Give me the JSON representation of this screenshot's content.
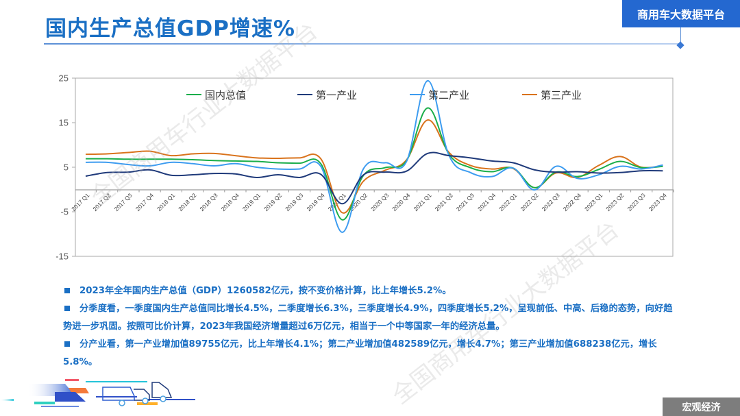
{
  "header": {
    "title": "国内生产总值GDP增速%",
    "brand": "商用车大数据平台"
  },
  "footer": {
    "section_label": "宏观经济"
  },
  "watermarks": [
    "全国商用车行业大数据平台",
    "全国商用车行业大数据平台"
  ],
  "colors": {
    "title_blue": "#1a6fc4",
    "brand_bg": "#2468d0",
    "section_bg": "#7d7d7d",
    "gdp": "#1aae4a",
    "primary": "#1f3a7a",
    "secondary": "#3d9cf0",
    "tertiary": "#d9731c"
  },
  "bullets": [
    {
      "text": "2023年全年国内生产总值（GDP）1260582亿元，按不变价格计算，比上年增长5.2%。"
    },
    {
      "text": "分季度看，一季度国内生产总值同比增长4.5%，二季度增长6.3%，三季度增长4.9%，四季度增长5.2%，呈现前低、中高、后稳的态势，向好趋势进一步巩固。按照可比价计算，2023年我国经济增量超过6万亿元，相当于一个中等国家一年的经济总量。"
    },
    {
      "text": "分产业看，第一产业增加值89755亿元，比上年增长4.1%；第二产业增加值482589亿元，增长4.7%；第三产业增加值688238亿元，增长5.8%。"
    }
  ],
  "chart_data": {
    "type": "line",
    "title": "国内生产总值GDP增速%",
    "xlabel": "",
    "ylabel": "",
    "ylim": [
      -15,
      25
    ],
    "yticks": [
      25,
      15,
      5,
      -5,
      -15
    ],
    "grid": false,
    "legend_position": "top-inside",
    "smooth": true,
    "categories": [
      "2017 Q1",
      "2017 Q2",
      "2017 Q3",
      "2017 Q4",
      "2018 Q1",
      "2018 Q2",
      "2018 Q3",
      "2018 Q4",
      "2019 Q1",
      "2019 Q2",
      "2019 Q3",
      "2019 Q4",
      "2020 Q1",
      "2020 Q2",
      "2020 Q3",
      "2020 Q4",
      "2021 Q1",
      "2021 Q2",
      "2021 Q3",
      "2021 Q4",
      "2022 Q1",
      "2022 Q2",
      "2022 Q3",
      "2022 Q4",
      "2023 Q1",
      "2023 Q2",
      "2023 Q3",
      "2023 Q4"
    ],
    "series": [
      {
        "name": "国内总值",
        "color": "#1aae4a",
        "values": [
          6.9,
          6.9,
          6.8,
          6.8,
          6.8,
          6.7,
          6.5,
          6.4,
          6.3,
          6.0,
          5.9,
          5.8,
          -6.8,
          3.2,
          4.9,
          6.4,
          18.3,
          7.9,
          4.9,
          4.0,
          4.8,
          0.4,
          3.9,
          2.9,
          4.5,
          6.3,
          4.9,
          5.2
        ]
      },
      {
        "name": "第一产业",
        "color": "#1f3a7a",
        "values": [
          3.0,
          3.8,
          3.9,
          4.4,
          3.2,
          3.3,
          3.6,
          3.5,
          2.7,
          3.3,
          2.7,
          3.4,
          -3.2,
          3.3,
          3.9,
          4.1,
          8.1,
          7.6,
          7.1,
          6.4,
          6.0,
          4.4,
          3.9,
          4.0,
          3.7,
          3.8,
          4.2,
          4.2
        ]
      },
      {
        "name": "第二产业",
        "color": "#3d9cf0",
        "values": [
          6.1,
          6.1,
          5.6,
          5.3,
          6.1,
          5.8,
          5.3,
          5.8,
          5.0,
          4.6,
          4.6,
          5.2,
          -9.6,
          4.7,
          6.0,
          6.2,
          24.4,
          7.6,
          3.8,
          2.9,
          4.8,
          -0.1,
          5.2,
          2.5,
          3.3,
          5.2,
          4.6,
          5.5
        ]
      },
      {
        "name": "第三产业",
        "color": "#d9731c",
        "values": [
          7.9,
          8.0,
          8.3,
          8.6,
          7.6,
          8.0,
          8.1,
          7.6,
          7.1,
          7.0,
          7.1,
          6.9,
          -5.2,
          1.9,
          4.3,
          6.6,
          15.6,
          8.3,
          5.4,
          4.6,
          4.7,
          0.4,
          3.7,
          2.7,
          5.4,
          7.4,
          5.0,
          5.4
        ]
      }
    ]
  }
}
